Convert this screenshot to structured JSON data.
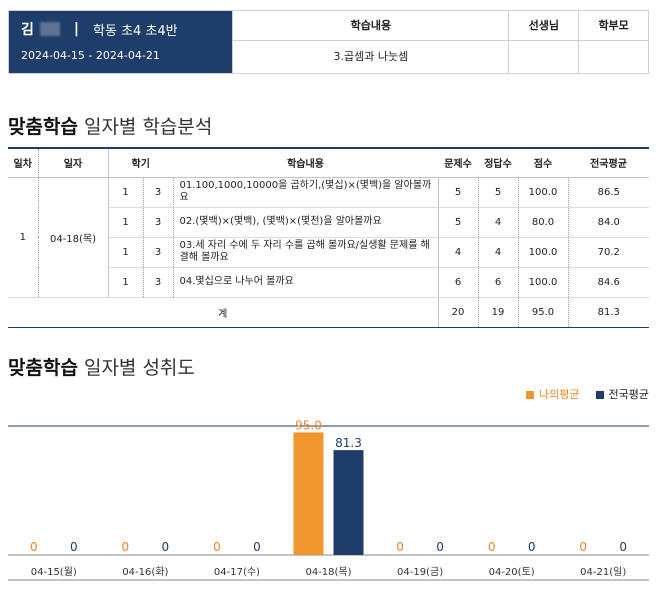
{
  "header": {
    "name": "김",
    "separator": "|",
    "class_name": "학동 초4 초4반",
    "period": "2024-04-15 - 2024-04-21",
    "col_content_title": "학습내용",
    "col_content_value": "3.곱셈과 나눗셈",
    "col_teacher_title": "선생님",
    "col_parent_title": "학부모"
  },
  "section1": {
    "bold": "맞춤학습",
    "rest": " 일자별 학습분석"
  },
  "table": {
    "headers": [
      "일차",
      "일자",
      "학기",
      "학습내용",
      "문제수",
      "정답수",
      "점수",
      "전국평균"
    ],
    "day": "1",
    "date": "04-18(목)",
    "rows": [
      {
        "sem": "1",
        "unit": "3",
        "content": "01.100,1000,10000을 곱하기,(몇십)×(몇백)을 알아볼까요",
        "q": "5",
        "c": "5",
        "score": "100.0",
        "avg": "86.5"
      },
      {
        "sem": "1",
        "unit": "3",
        "content": "02.(몇백)×(몇백), (몇백)×(몇천)을 알아볼까요",
        "q": "5",
        "c": "4",
        "score": "80.0",
        "avg": "84.0"
      },
      {
        "sem": "1",
        "unit": "3",
        "content": "03.세 자리 수에 두 자리 수를 곱해 볼까요/실생활 문제를 해결해 볼까요",
        "q": "4",
        "c": "4",
        "score": "100.0",
        "avg": "70.2"
      },
      {
        "sem": "1",
        "unit": "3",
        "content": "04.몇십으로 나누어 볼까요",
        "q": "6",
        "c": "6",
        "score": "100.0",
        "avg": "84.6"
      }
    ],
    "total": {
      "label": "계",
      "q": "20",
      "c": "19",
      "score": "95.0",
      "avg": "81.3"
    }
  },
  "section2": {
    "bold": "맞춤학습",
    "rest": " 일자별 성취도"
  },
  "chart_data": {
    "type": "bar",
    "categories": [
      "04-15(월)",
      "04-16(화)",
      "04-17(수)",
      "04-18(목)",
      "04-19(금)",
      "04-20(토)",
      "04-21(일)"
    ],
    "series": [
      {
        "name": "나의평균",
        "color": "#f0962e",
        "label_color": "#e8862a",
        "values": [
          0,
          0,
          0,
          95.0,
          0,
          0,
          0
        ]
      },
      {
        "name": "전국평균",
        "color": "#1f3d6b",
        "label_color": "#1f3d6b",
        "values": [
          0,
          0,
          0,
          81.3,
          0,
          0,
          0
        ]
      }
    ],
    "ylim": [
      0,
      100
    ],
    "legend": "top-right"
  }
}
